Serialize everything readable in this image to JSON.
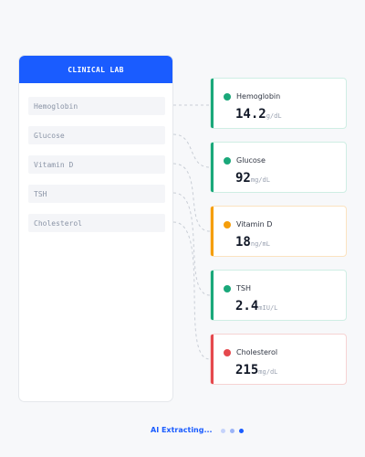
{
  "panel": {
    "title": "CLINICAL LAB",
    "items": [
      {
        "label": "Hemoglobin"
      },
      {
        "label": "Glucose"
      },
      {
        "label": "Vitamin D"
      },
      {
        "label": "TSH"
      },
      {
        "label": "Cholesterol"
      }
    ]
  },
  "results": [
    {
      "name": "Hemoglobin",
      "value": "14.2",
      "unit": "g/dL",
      "status_color": "#1aa87a",
      "border_color": "#cfeee4"
    },
    {
      "name": "Glucose",
      "value": "92",
      "unit": "mg/dL",
      "status_color": "#1aa87a",
      "border_color": "#cfeee4"
    },
    {
      "name": "Vitamin D",
      "value": "18",
      "unit": "ng/mL",
      "status_color": "#f59e0b",
      "border_color": "#fbe3c0"
    },
    {
      "name": "TSH",
      "value": "2.4",
      "unit": "mIU/L",
      "status_color": "#1aa87a",
      "border_color": "#cfeee4"
    },
    {
      "name": "Cholesterol",
      "value": "215",
      "unit": "mg/dL",
      "status_color": "#e5484d",
      "border_color": "#f6d3d3"
    }
  ],
  "status": {
    "text": "AI Extracting...",
    "dot_colors": [
      "#c5d3fb",
      "#9bb4f8",
      "#1a5cff"
    ]
  },
  "colors": {
    "accent": "#1a5cff",
    "connector": "#c9ced6"
  }
}
